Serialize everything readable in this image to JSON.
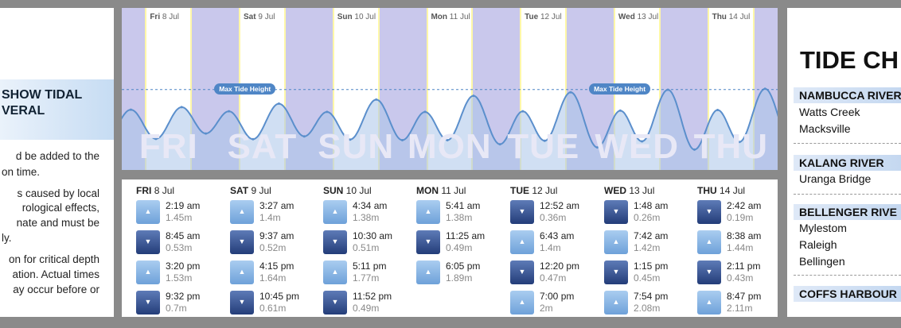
{
  "left_panel": {
    "heading_lines": [
      "SHOW TIDAL",
      "VERAL"
    ],
    "paragraphs": [
      [
        "d be added to the",
        "on time."
      ],
      [
        "s caused by local",
        "rological effects,",
        "nate and must be",
        "ly."
      ],
      [
        "on for critical depth",
        "ation. Actual times",
        "ay occur before or"
      ]
    ]
  },
  "chart": {
    "max_label": "Max Tide Height",
    "days": [
      {
        "abbr": "Fri",
        "date": "8 Jul",
        "big": "FRI"
      },
      {
        "abbr": "Sat",
        "date": "9 Jul",
        "big": "SAT"
      },
      {
        "abbr": "Sun",
        "date": "10 Jul",
        "big": "SUN"
      },
      {
        "abbr": "Mon",
        "date": "11 Jul",
        "big": "MON"
      },
      {
        "abbr": "Tue",
        "date": "12 Jul",
        "big": "TUE"
      },
      {
        "abbr": "Wed",
        "date": "13 Jul",
        "big": "WED"
      },
      {
        "abbr": "Thu",
        "date": "14 Jul",
        "big": "THU"
      }
    ],
    "colors": {
      "background": "#c9c8ec",
      "day": "#ffffff",
      "curve": "#5b8fcc",
      "fill": "#a9c5ea"
    }
  },
  "chart_data": {
    "type": "line",
    "title": "",
    "xlabel": "",
    "ylabel": "",
    "max_tide_height_marked": true,
    "series": [
      {
        "x": [
          "Fri 8 Jul 2:19 am",
          "Fri 8 Jul 8:45 am",
          "Fri 8 Jul 3:20 pm",
          "Fri 8 Jul 9:32 pm",
          "Sat 9 Jul 3:27 am",
          "Sat 9 Jul 9:37 am",
          "Sat 9 Jul 4:15 pm",
          "Sat 9 Jul 10:45 pm",
          "Sun 10 Jul 4:34 am",
          "Sun 10 Jul 10:30 am",
          "Sun 10 Jul 5:11 pm",
          "Sun 10 Jul 11:52 pm",
          "Mon 11 Jul 5:41 am",
          "Mon 11 Jul 11:25 am",
          "Mon 11 Jul 6:05 pm",
          "Tue 12 Jul 12:52 am",
          "Tue 12 Jul 6:43 am",
          "Tue 12 Jul 12:20 pm",
          "Tue 12 Jul 7:00 pm",
          "Wed 13 Jul 1:48 am",
          "Wed 13 Jul 7:42 am",
          "Wed 13 Jul 1:15 pm",
          "Wed 13 Jul 7:54 pm",
          "Thu 14 Jul 2:42 am",
          "Thu 14 Jul 8:38 am",
          "Thu 14 Jul 2:11 pm",
          "Thu 14 Jul 8:47 pm"
        ],
        "values": [
          1.45,
          0.53,
          1.53,
          0.7,
          1.4,
          0.52,
          1.64,
          0.61,
          1.38,
          0.51,
          1.77,
          0.49,
          1.38,
          0.49,
          1.89,
          0.36,
          1.4,
          0.47,
          2,
          0.26,
          1.42,
          0.45,
          2.08,
          0.19,
          1.44,
          0.43,
          2.11
        ]
      }
    ]
  },
  "tide_table": [
    {
      "abbr": "FRI",
      "date": "8 Jul",
      "tides": [
        {
          "dir": "up",
          "time": "2:19 am",
          "height": "1.45m"
        },
        {
          "dir": "down",
          "time": "8:45 am",
          "height": "0.53m"
        },
        {
          "dir": "up",
          "time": "3:20 pm",
          "height": "1.53m"
        },
        {
          "dir": "down",
          "time": "9:32 pm",
          "height": "0.7m"
        }
      ]
    },
    {
      "abbr": "SAT",
      "date": "9 Jul",
      "tides": [
        {
          "dir": "up",
          "time": "3:27 am",
          "height": "1.4m"
        },
        {
          "dir": "down",
          "time": "9:37 am",
          "height": "0.52m"
        },
        {
          "dir": "up",
          "time": "4:15 pm",
          "height": "1.64m"
        },
        {
          "dir": "down",
          "time": "10:45 pm",
          "height": "0.61m"
        }
      ]
    },
    {
      "abbr": "SUN",
      "date": "10 Jul",
      "tides": [
        {
          "dir": "up",
          "time": "4:34 am",
          "height": "1.38m"
        },
        {
          "dir": "down",
          "time": "10:30 am",
          "height": "0.51m"
        },
        {
          "dir": "up",
          "time": "5:11 pm",
          "height": "1.77m"
        },
        {
          "dir": "down",
          "time": "11:52 pm",
          "height": "0.49m"
        }
      ]
    },
    {
      "abbr": "MON",
      "date": "11 Jul",
      "tides": [
        {
          "dir": "up",
          "time": "5:41 am",
          "height": "1.38m"
        },
        {
          "dir": "down",
          "time": "11:25 am",
          "height": "0.49m"
        },
        {
          "dir": "up",
          "time": "6:05 pm",
          "height": "1.89m"
        }
      ]
    },
    {
      "abbr": "TUE",
      "date": "12 Jul",
      "tides": [
        {
          "dir": "down",
          "time": "12:52 am",
          "height": "0.36m"
        },
        {
          "dir": "up",
          "time": "6:43 am",
          "height": "1.4m"
        },
        {
          "dir": "down",
          "time": "12:20 pm",
          "height": "0.47m"
        },
        {
          "dir": "up",
          "time": "7:00 pm",
          "height": "2m"
        }
      ]
    },
    {
      "abbr": "WED",
      "date": "13 Jul",
      "tides": [
        {
          "dir": "down",
          "time": "1:48 am",
          "height": "0.26m"
        },
        {
          "dir": "up",
          "time": "7:42 am",
          "height": "1.42m"
        },
        {
          "dir": "down",
          "time": "1:15 pm",
          "height": "0.45m"
        },
        {
          "dir": "up",
          "time": "7:54 pm",
          "height": "2.08m"
        }
      ]
    },
    {
      "abbr": "THU",
      "date": "14 Jul",
      "tides": [
        {
          "dir": "down",
          "time": "2:42 am",
          "height": "0.19m"
        },
        {
          "dir": "up",
          "time": "8:38 am",
          "height": "1.44m"
        },
        {
          "dir": "down",
          "time": "2:11 pm",
          "height": "0.43m"
        },
        {
          "dir": "up",
          "time": "8:47 pm",
          "height": "2.11m"
        }
      ]
    }
  ],
  "icons": {
    "up": "arrow-up-icon",
    "down": "arrow-down-icon"
  },
  "right_panel": {
    "title": "TIDE CH",
    "groups": [
      {
        "river": "NAMBUCCA RIVER",
        "sites": [
          "Watts Creek",
          "Macksville"
        ]
      },
      {
        "river": "KALANG RIVER",
        "sites": [
          "Uranga Bridge"
        ]
      },
      {
        "river": "BELLENGER RIVE",
        "sites": [
          "Mylestom",
          "Raleigh",
          "Bellingen"
        ]
      },
      {
        "river": "COFFS HARBOUR",
        "sites": []
      }
    ]
  }
}
